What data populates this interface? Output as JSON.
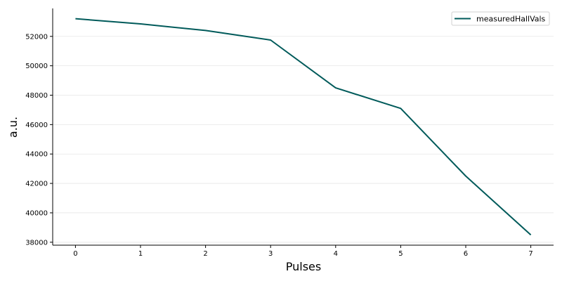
{
  "chart_data": {
    "type": "line",
    "title": "",
    "xlabel": "Pulses",
    "ylabel": "a.u.",
    "x": [
      0,
      1,
      2,
      3,
      4,
      5,
      6,
      7
    ],
    "series": [
      {
        "name": "measuredHallVals",
        "color": "#005a5a",
        "values": [
          53200,
          52850,
          52400,
          51750,
          48500,
          47100,
          42500,
          38500
        ]
      }
    ],
    "xlim": [
      -0.35,
      7.35
    ],
    "ylim": [
      37800,
      53900
    ],
    "xticks": [
      0,
      1,
      2,
      3,
      4,
      5,
      6,
      7
    ],
    "yticks": [
      38000,
      40000,
      42000,
      44000,
      46000,
      48000,
      50000,
      52000
    ],
    "grid": "horizontal",
    "legend": "top-right"
  }
}
